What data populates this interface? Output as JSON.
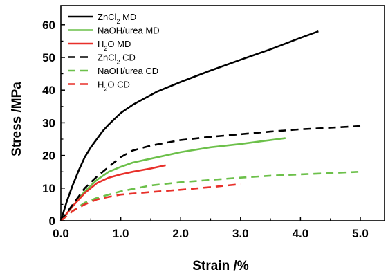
{
  "chart_data": {
    "type": "line",
    "xlabel": "Strain /%",
    "ylabel": "Stress /MPa",
    "xlim": [
      0,
      5.5
    ],
    "ylim": [
      0,
      65
    ],
    "x_ticks": [
      "0.0",
      "1.0",
      "2.0",
      "3.0",
      "4.0",
      "5.0"
    ],
    "y_ticks": [
      "0",
      "10",
      "20",
      "30",
      "40",
      "50",
      "60"
    ],
    "grid": false,
    "legend_position": "top-left",
    "series": [
      {
        "name": "ZnCl2 MD",
        "legend_parts": [
          "ZnCl",
          "2",
          " MD"
        ],
        "color": "#000000",
        "dash": "solid",
        "x": [
          0,
          0.1,
          0.2,
          0.3,
          0.4,
          0.5,
          0.6,
          0.7,
          0.8,
          1.0,
          1.2,
          1.4,
          1.6,
          1.8,
          2.0,
          2.5,
          3.0,
          3.5,
          4.0,
          4.3
        ],
        "y": [
          0,
          6,
          11,
          15.5,
          19.5,
          22.5,
          25,
          27.5,
          29.5,
          33,
          35.5,
          37.5,
          39.5,
          41,
          42.5,
          46,
          49.3,
          52.5,
          56,
          58
        ]
      },
      {
        "name": "NaOH/urea MD",
        "legend_parts": [
          "NaOH/urea MD"
        ],
        "color": "#6cc04a",
        "dash": "solid",
        "x": [
          0,
          0.2,
          0.4,
          0.6,
          0.8,
          1.0,
          1.2,
          1.5,
          2.0,
          2.5,
          3.0,
          3.5,
          3.75
        ],
        "y": [
          0,
          4.5,
          9,
          12.5,
          15,
          16.5,
          17.8,
          19,
          21,
          22.5,
          23.5,
          24.7,
          25.3
        ]
      },
      {
        "name": "H2O MD",
        "legend_parts": [
          "H",
          "2",
          "O MD"
        ],
        "color": "#e8302a",
        "dash": "solid",
        "x": [
          0,
          0.2,
          0.4,
          0.6,
          0.8,
          1.0,
          1.2,
          1.5,
          1.75
        ],
        "y": [
          0,
          4.5,
          8.5,
          11.5,
          13.2,
          14.2,
          15,
          16,
          17
        ]
      },
      {
        "name": "ZnCl2 CD",
        "legend_parts": [
          "ZnCl",
          "2",
          " CD"
        ],
        "color": "#000000",
        "dash": "dashed",
        "x": [
          0,
          0.2,
          0.4,
          0.6,
          0.8,
          1.0,
          1.2,
          1.5,
          2.0,
          2.5,
          3.0,
          3.5,
          4.0,
          4.5,
          5.0
        ],
        "y": [
          0,
          5,
          10,
          13.5,
          16.5,
          19.5,
          21.5,
          23,
          24.7,
          25.7,
          26.5,
          27.3,
          28,
          28.5,
          29
        ]
      },
      {
        "name": "NaOH/urea CD",
        "legend_parts": [
          "NaOH/urea CD"
        ],
        "color": "#6cc04a",
        "dash": "dashed",
        "x": [
          0,
          0.2,
          0.4,
          0.6,
          0.8,
          1.0,
          1.5,
          2.0,
          2.5,
          3.0,
          3.5,
          4.0,
          4.5,
          5.0
        ],
        "y": [
          0,
          3,
          5.5,
          7,
          8,
          9,
          10.8,
          11.8,
          12.5,
          13.2,
          13.8,
          14.2,
          14.6,
          15
        ]
      },
      {
        "name": "H2O CD",
        "legend_parts": [
          "H",
          "2",
          "O CD"
        ],
        "color": "#e8302a",
        "dash": "dashed",
        "x": [
          0,
          0.2,
          0.4,
          0.6,
          0.8,
          1.0,
          1.5,
          2.0,
          2.5,
          3.0
        ],
        "y": [
          0,
          3,
          5,
          6.5,
          7.3,
          8,
          8.8,
          9.5,
          10.3,
          11.2
        ]
      }
    ]
  }
}
